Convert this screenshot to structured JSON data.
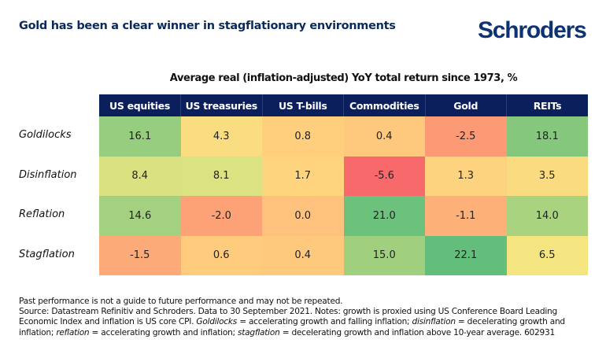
{
  "header": {
    "title": "Gold has been a clear winner in stagflationary environments",
    "logo": "Schroders"
  },
  "chart_data": {
    "type": "heatmap",
    "title": "Average real (inflation-adjusted) YoY total return since 1973, %",
    "columns": [
      "US equities",
      "US treasuries",
      "US T-bills",
      "Commodities",
      "Gold",
      "REITs"
    ],
    "rows": [
      "Goldilocks",
      "Disinflation",
      "Reflation",
      "Stagflation"
    ],
    "values": [
      [
        16.1,
        4.3,
        0.8,
        0.4,
        -2.5,
        18.1
      ],
      [
        8.4,
        8.1,
        1.7,
        -5.6,
        1.3,
        3.5
      ],
      [
        14.6,
        -2.0,
        0.0,
        21.0,
        -1.1,
        14.0
      ],
      [
        -1.5,
        0.6,
        0.4,
        15.0,
        22.1,
        6.5
      ]
    ],
    "display_values": [
      [
        "16.1",
        "4.3",
        "0.8",
        "0.4",
        "-2.5",
        "18.1"
      ],
      [
        "8.4",
        "8.1",
        "1.7",
        "-5.6",
        "1.3",
        "3.5"
      ],
      [
        "14.6",
        "-2.0",
        "0.0",
        "21.0",
        "-1.1",
        "14.0"
      ],
      [
        "-1.5",
        "0.6",
        "0.4",
        "15.0",
        "22.1",
        "6.5"
      ]
    ],
    "color_scale": {
      "low": "#f8696b",
      "mid": "#ffd27f",
      "high": "#63be7b"
    },
    "header_color": "#0b1f5c"
  },
  "footer": {
    "disclaimer": "Past performance is not a guide to future performance and may not be repeated.",
    "source_prefix": "Source: Datastream Refinitiv and Schroders. Data to 30 September 2021. Notes: growth is proxied using US Conference Board Leading Economic Index and inflation is US core CPI. ",
    "term1": "Goldilocks",
    "def1": " = accelerating growth and falling inflation; ",
    "term2": "disinflation",
    "def2": " = decelerating growth and inflation; ",
    "term3": "reflation",
    "def3": " = accelerating growth and inflation; ",
    "term4": "stagflation",
    "def4": " = decelerating growth and inflation above 10-year average. 602931"
  }
}
